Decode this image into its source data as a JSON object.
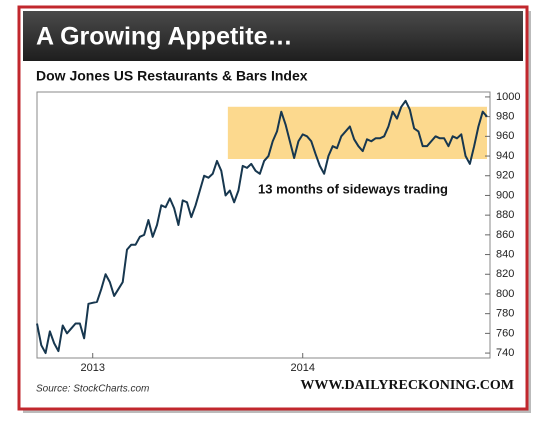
{
  "chart_data": {
    "type": "line",
    "title": "A Growing Appetite…",
    "subtitle": "Dow Jones US Restaurants & Bars Index",
    "annotation": "13 months of sideways trading",
    "source": "Source: StockCharts.com",
    "website": "WWW.DAILYRECKONING.COM",
    "categories": [
      null,
      null,
      null,
      null,
      null,
      null,
      null,
      null,
      null,
      null,
      null,
      null,
      null,
      "2013",
      null,
      null,
      null,
      null,
      null,
      null,
      null,
      null,
      null,
      null,
      null,
      null,
      null,
      null,
      null,
      null,
      null,
      null,
      null,
      null,
      null,
      null,
      null,
      null,
      null,
      null,
      null,
      null,
      null,
      null,
      null,
      null,
      null,
      null,
      null,
      null,
      null,
      null,
      null,
      null,
      null,
      null,
      null,
      null,
      null,
      null,
      null,
      null,
      "2014",
      null,
      null,
      null,
      null,
      null,
      null,
      null,
      null,
      null,
      null,
      null,
      null,
      null,
      null,
      null,
      null,
      null,
      null,
      null,
      null,
      null,
      null,
      null,
      null,
      null,
      null,
      null,
      null,
      null,
      null,
      null,
      null,
      null,
      null,
      null,
      null,
      null,
      null,
      null,
      null,
      null,
      null,
      null
    ],
    "series": [
      {
        "name": "Dow Jones US Restaurants & Bars Index",
        "color": "#17374f",
        "values": [
          770,
          748,
          740,
          762,
          750,
          742,
          768,
          760,
          765,
          770,
          770,
          755,
          790,
          791,
          792,
          805,
          820,
          812,
          798,
          805,
          812,
          845,
          850,
          850,
          858,
          860,
          875,
          858,
          870,
          890,
          888,
          897,
          887,
          870,
          895,
          893,
          878,
          890,
          905,
          920,
          918,
          922,
          935,
          925,
          900,
          905,
          893,
          905,
          930,
          928,
          932,
          925,
          922,
          935,
          940,
          955,
          965,
          985,
          972,
          955,
          938,
          955,
          962,
          960,
          955,
          942,
          930,
          922,
          940,
          950,
          948,
          960,
          965,
          970,
          957,
          950,
          945,
          957,
          955,
          958,
          958,
          960,
          970,
          985,
          978,
          990,
          996,
          987,
          968,
          965,
          950,
          950,
          955,
          960,
          958,
          958,
          950,
          960,
          958,
          962,
          940,
          932,
          950,
          970,
          985,
          980
        ]
      }
    ],
    "ylim": [
      735,
      1005
    ],
    "yticks": [
      740,
      760,
      780,
      800,
      820,
      840,
      860,
      880,
      900,
      920,
      940,
      960,
      980,
      1000
    ],
    "highlight_ylim": [
      937,
      990
    ],
    "highlight_start": 45,
    "highlight_color": "#fcd27a",
    "grid": false
  }
}
